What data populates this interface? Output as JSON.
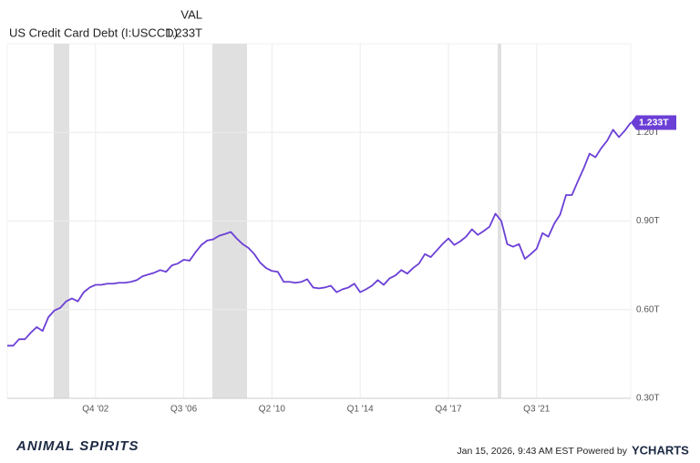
{
  "chart_data": {
    "type": "line",
    "header_label": "VAL",
    "footer_text": "Jan 15, 2026, 9:43 AM EST Powered by",
    "brand": "YCHARTS",
    "logo_text": "ANIMAL SPIRITS",
    "last_value_label": "1.233T",
    "categories": [
      null,
      null,
      null,
      null,
      null,
      null,
      null,
      null,
      null,
      null,
      null,
      null,
      null,
      null,
      null,
      "Q4 '02",
      null,
      null,
      null,
      null,
      null,
      null,
      null,
      null,
      null,
      null,
      null,
      null,
      null,
      null,
      "Q3 '06",
      null,
      null,
      null,
      null,
      null,
      null,
      null,
      null,
      null,
      null,
      null,
      null,
      null,
      null,
      "Q2 '10",
      null,
      null,
      null,
      null,
      null,
      null,
      null,
      null,
      null,
      null,
      null,
      null,
      null,
      null,
      "Q1 '14",
      null,
      null,
      null,
      null,
      null,
      null,
      null,
      null,
      null,
      null,
      null,
      null,
      null,
      null,
      "Q4 '17",
      null,
      null,
      null,
      null,
      null,
      null,
      null,
      null,
      null,
      null,
      null,
      null,
      null,
      null,
      "Q3 '21",
      null,
      null,
      null,
      null,
      null,
      null,
      null,
      null,
      null,
      null,
      null,
      null,
      null,
      null,
      null,
      null
    ],
    "series": [
      {
        "name": "US Credit Card Debt (I:USCCD)",
        "color": "#6b3fd6",
        "values": [
          0.478,
          0.478,
          0.5,
          0.5,
          0.522,
          0.541,
          0.528,
          0.575,
          0.597,
          0.606,
          0.628,
          0.638,
          0.628,
          0.659,
          0.675,
          0.684,
          0.684,
          0.688,
          0.688,
          0.691,
          0.691,
          0.694,
          0.7,
          0.713,
          0.719,
          0.725,
          0.734,
          0.728,
          0.75,
          0.756,
          0.769,
          0.766,
          0.794,
          0.819,
          0.834,
          0.838,
          0.85,
          0.856,
          0.863,
          0.841,
          0.822,
          0.809,
          0.788,
          0.759,
          0.741,
          0.731,
          0.728,
          0.694,
          0.694,
          0.691,
          0.694,
          0.703,
          0.675,
          0.672,
          0.675,
          0.681,
          0.659,
          0.669,
          0.675,
          0.688,
          0.659,
          0.669,
          0.681,
          0.7,
          0.684,
          0.706,
          0.716,
          0.734,
          0.722,
          0.741,
          0.756,
          0.788,
          0.778,
          0.8,
          0.822,
          0.841,
          0.819,
          0.831,
          0.847,
          0.872,
          0.853,
          0.866,
          0.881,
          0.925,
          0.9,
          0.822,
          0.813,
          0.822,
          0.772,
          0.788,
          0.806,
          0.859,
          0.847,
          0.891,
          0.922,
          0.988,
          0.988,
          1.034,
          1.078,
          1.128,
          1.116,
          1.147,
          1.172,
          1.209,
          1.184,
          1.206,
          1.233
        ]
      }
    ],
    "ylim": [
      0.3,
      1.5
    ],
    "yticks": [
      {
        "value": 0.3,
        "label": "0.30T"
      },
      {
        "value": 0.6,
        "label": "0.60T"
      },
      {
        "value": 0.9,
        "label": "0.90T"
      },
      {
        "value": 1.2,
        "label": "1.20T"
      }
    ],
    "grid": true
  }
}
